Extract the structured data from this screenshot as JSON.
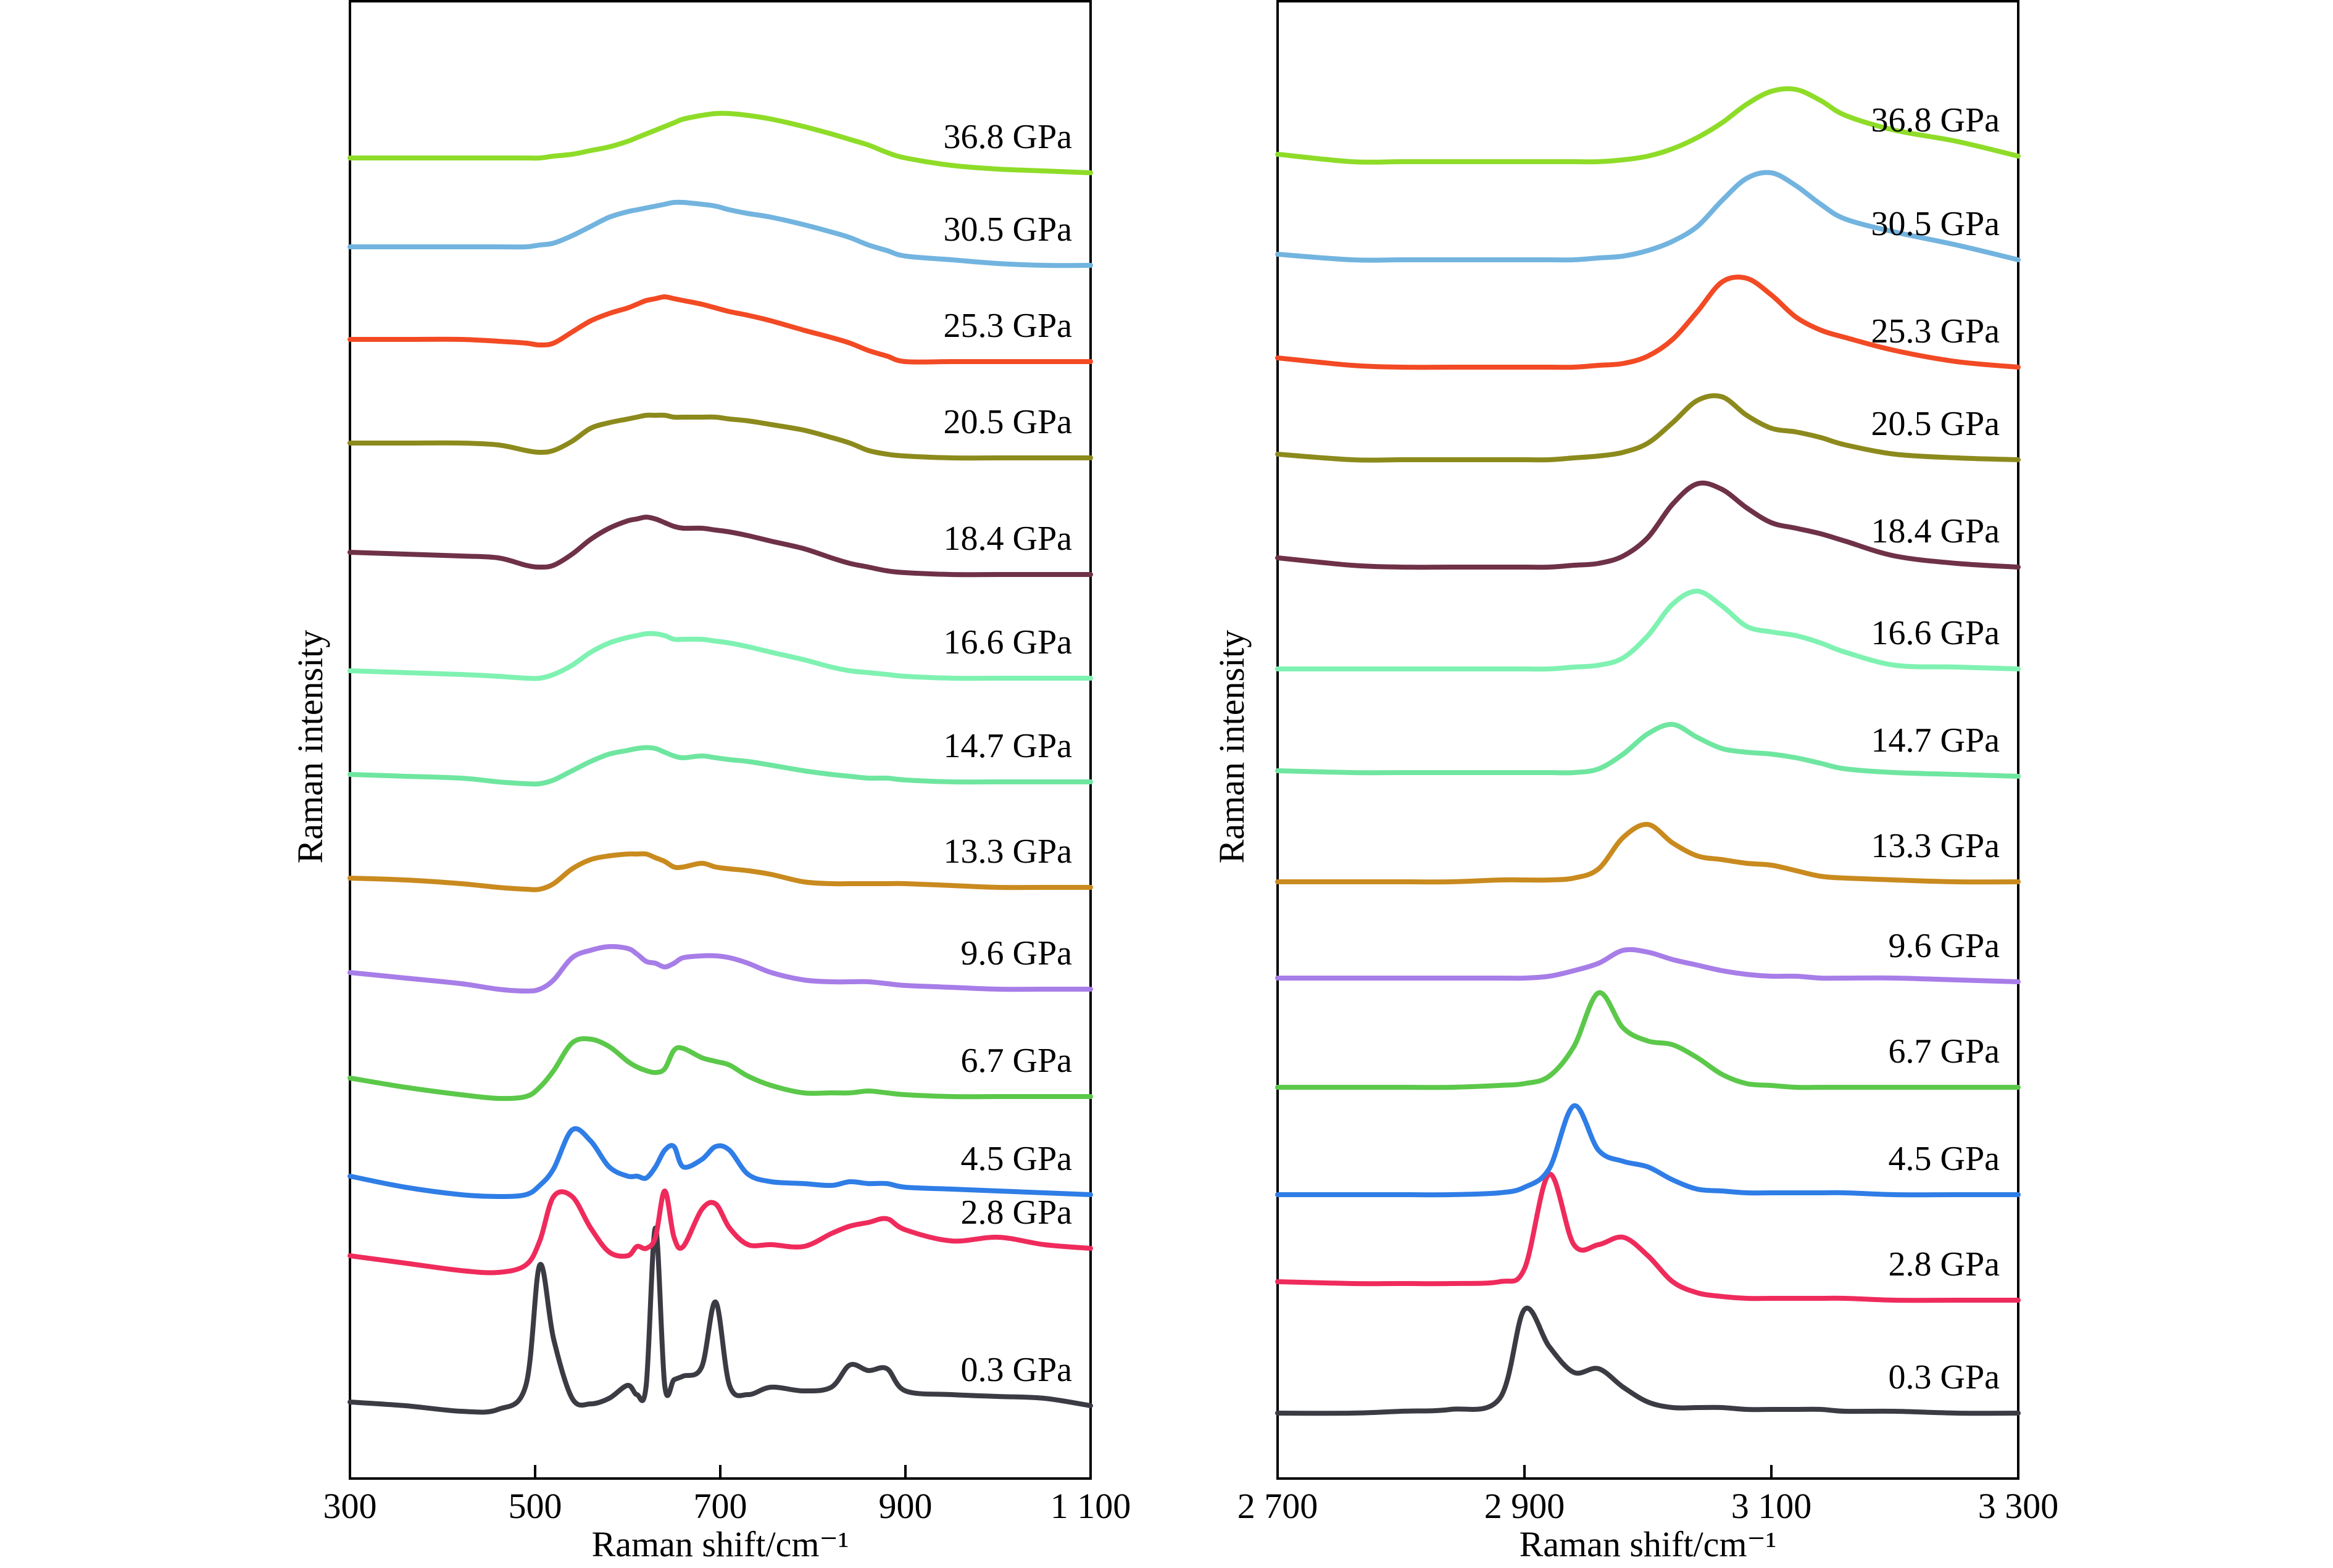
{
  "chart_data": [
    {
      "type": "line",
      "panel": "left",
      "xlabel": "Raman shift/cm⁻¹",
      "ylabel": "Raman intensity",
      "xlim": [
        300,
        1100
      ],
      "xticks": [
        300,
        500,
        700,
        900,
        1100
      ],
      "xtick_labels": [
        "300",
        "500",
        "700",
        "900",
        "1 100"
      ],
      "grid": false,
      "stacked_offset_traces": true,
      "x": [
        300,
        360,
        420,
        460,
        490,
        505,
        520,
        540,
        560,
        580,
        600,
        610,
        620,
        630,
        640,
        650,
        660,
        680,
        695,
        710,
        730,
        755,
        790,
        820,
        840,
        860,
        880,
        900,
        950,
        1000,
        1050,
        1100
      ],
      "series": [
        {
          "name": "0.3 GPa",
          "color": "#3b3b44",
          "baseline": 0.0,
          "values": [
            0.6,
            0.4,
            0.1,
            0.2,
            1.5,
            8.0,
            4.0,
            0.8,
            0.5,
            0.8,
            1.5,
            1.0,
            1.5,
            10.0,
            1.5,
            1.8,
            2.0,
            2.5,
            6.0,
            1.5,
            1.0,
            1.4,
            1.2,
            1.4,
            2.6,
            2.3,
            2.4,
            1.2,
            1.0,
            0.9,
            0.8,
            0.4
          ]
        },
        {
          "name": "2.8 GPa",
          "color": "#ef2b5c",
          "baseline": 7.5,
          "values": [
            1.0,
            0.6,
            0.2,
            0.1,
            0.5,
            1.8,
            4.2,
            4.2,
            2.5,
            1.2,
            1.0,
            1.5,
            1.4,
            2.0,
            4.5,
            2.0,
            1.5,
            3.5,
            3.8,
            2.5,
            1.6,
            1.6,
            1.5,
            2.2,
            2.6,
            2.8,
            3.0,
            2.4,
            1.8,
            2.0,
            1.6,
            1.4
          ]
        },
        {
          "name": "4.5 GPa",
          "color": "#2f7de6",
          "baseline": 11.7,
          "values": [
            1.1,
            0.5,
            0.1,
            0.0,
            0.1,
            0.6,
            1.5,
            3.6,
            3.0,
            1.6,
            1.1,
            1.1,
            1.0,
            1.6,
            2.5,
            2.7,
            1.6,
            2.0,
            2.7,
            2.5,
            1.2,
            0.8,
            0.7,
            0.6,
            0.8,
            0.7,
            0.7,
            0.5,
            0.4,
            0.3,
            0.2,
            0.1
          ]
        },
        {
          "name": "6.7 GPa",
          "color": "#5bc84a",
          "baseline": 17.0,
          "values": [
            1.1,
            0.6,
            0.2,
            0.0,
            0.1,
            0.6,
            1.5,
            3.0,
            3.2,
            2.8,
            2.0,
            1.7,
            1.5,
            1.4,
            1.6,
            2.6,
            2.7,
            2.2,
            2.0,
            1.8,
            1.2,
            0.7,
            0.3,
            0.3,
            0.3,
            0.4,
            0.3,
            0.2,
            0.1,
            0.1,
            0.1,
            0.1
          ]
        },
        {
          "name": "9.6 GPa",
          "color": "#a77de8",
          "baseline": 22.8,
          "values": [
            1.0,
            0.7,
            0.4,
            0.1,
            0.0,
            0.1,
            0.6,
            1.8,
            2.2,
            2.4,
            2.3,
            2.0,
            1.6,
            1.5,
            1.3,
            1.5,
            1.8,
            1.9,
            1.9,
            1.8,
            1.5,
            1.0,
            0.6,
            0.5,
            0.5,
            0.5,
            0.4,
            0.3,
            0.2,
            0.1,
            0.1,
            0.1
          ]
        },
        {
          "name": "13.3 GPa",
          "color": "#c98a1e",
          "baseline": 28.3,
          "values": [
            0.6,
            0.5,
            0.3,
            0.1,
            0.0,
            0.0,
            0.3,
            1.1,
            1.6,
            1.8,
            1.9,
            1.9,
            1.9,
            1.7,
            1.5,
            1.2,
            1.2,
            1.4,
            1.2,
            1.1,
            1.0,
            0.8,
            0.4,
            0.3,
            0.3,
            0.3,
            0.3,
            0.3,
            0.2,
            0.1,
            0.1,
            0.1
          ]
        },
        {
          "name": "14.7 GPa",
          "color": "#6fe6a0",
          "baseline": 34.0,
          "values": [
            0.5,
            0.4,
            0.3,
            0.1,
            0.0,
            0.0,
            0.2,
            0.7,
            1.2,
            1.6,
            1.8,
            1.9,
            1.95,
            1.9,
            1.7,
            1.5,
            1.4,
            1.5,
            1.4,
            1.3,
            1.2,
            1.0,
            0.7,
            0.5,
            0.4,
            0.3,
            0.3,
            0.2,
            0.1,
            0.1,
            0.1,
            0.1
          ]
        },
        {
          "name": "16.6 GPa",
          "color": "#7ff2b2",
          "baseline": 39.7,
          "values": [
            0.4,
            0.3,
            0.2,
            0.1,
            0.0,
            0.0,
            0.2,
            0.7,
            1.4,
            1.9,
            2.2,
            2.3,
            2.4,
            2.4,
            2.3,
            2.1,
            2.1,
            2.1,
            2.0,
            1.9,
            1.7,
            1.4,
            1.0,
            0.6,
            0.4,
            0.3,
            0.2,
            0.1,
            0.0,
            0.0,
            0.0,
            0.0
          ]
        },
        {
          "name": "18.4 GPa",
          "color": "#6e3148",
          "baseline": 45.3,
          "values": [
            1.2,
            1.1,
            1.0,
            0.9,
            0.5,
            0.4,
            0.5,
            1.1,
            1.9,
            2.5,
            2.9,
            3.0,
            3.1,
            3.0,
            2.8,
            2.6,
            2.5,
            2.5,
            2.4,
            2.3,
            2.1,
            1.8,
            1.4,
            0.9,
            0.6,
            0.4,
            0.2,
            0.1,
            0.0,
            0.0,
            0.0,
            0.0
          ]
        },
        {
          "name": "20.5 GPa",
          "color": "#8c8a1c",
          "baseline": 51.6,
          "values": [
            0.8,
            0.8,
            0.8,
            0.7,
            0.4,
            0.3,
            0.4,
            0.9,
            1.6,
            1.9,
            2.1,
            2.2,
            2.3,
            2.3,
            2.3,
            2.2,
            2.2,
            2.2,
            2.2,
            2.1,
            2.0,
            1.8,
            1.5,
            1.1,
            0.8,
            0.4,
            0.2,
            0.1,
            0.0,
            0.0,
            0.0,
            0.0
          ]
        },
        {
          "name": "25.3 GPa",
          "color": "#f24a24",
          "baseline": 56.8,
          "values": [
            1.2,
            1.2,
            1.2,
            1.1,
            1.0,
            0.9,
            1.0,
            1.6,
            2.2,
            2.6,
            2.9,
            3.1,
            3.3,
            3.4,
            3.5,
            3.4,
            3.3,
            3.1,
            2.9,
            2.7,
            2.5,
            2.2,
            1.7,
            1.3,
            1.0,
            0.6,
            0.3,
            0.0,
            0.0,
            0.0,
            0.0,
            0.0
          ]
        },
        {
          "name": "30.5 GPa",
          "color": "#72b4df",
          "baseline": 62.0,
          "values": [
            1.0,
            1.0,
            1.0,
            1.0,
            1.0,
            1.1,
            1.2,
            1.6,
            2.1,
            2.6,
            2.9,
            3.0,
            3.1,
            3.2,
            3.3,
            3.4,
            3.4,
            3.3,
            3.2,
            3.0,
            2.8,
            2.6,
            2.2,
            1.8,
            1.5,
            1.1,
            0.8,
            0.5,
            0.3,
            0.1,
            0.0,
            0.0
          ]
        },
        {
          "name": "36.8 GPa",
          "color": "#8edc28",
          "baseline": 67.0,
          "values": [
            0.8,
            0.8,
            0.8,
            0.8,
            0.8,
            0.8,
            0.9,
            1.0,
            1.2,
            1.4,
            1.7,
            1.9,
            2.1,
            2.3,
            2.5,
            2.7,
            2.9,
            3.1,
            3.2,
            3.2,
            3.1,
            2.9,
            2.5,
            2.1,
            1.8,
            1.5,
            1.1,
            0.8,
            0.4,
            0.2,
            0.1,
            0.0
          ]
        }
      ]
    },
    {
      "type": "line",
      "panel": "right",
      "xlabel": "Raman shift/cm⁻¹",
      "ylabel": "Raman intensity",
      "xlim": [
        2700,
        3300
      ],
      "xticks": [
        2700,
        2900,
        3100,
        3300
      ],
      "xtick_labels": [
        "2 700",
        "2 900",
        "3 100",
        "3 300"
      ],
      "grid": false,
      "stacked_offset_traces": true,
      "x": [
        2700,
        2760,
        2800,
        2840,
        2880,
        2900,
        2920,
        2940,
        2960,
        2980,
        3000,
        3020,
        3040,
        3060,
        3080,
        3100,
        3120,
        3140,
        3160,
        3200,
        3250,
        3300
      ],
      "series": [
        {
          "name": "0.3 GPa",
          "color": "#3b3b44",
          "baseline": 0.0,
          "values": [
            0.0,
            0.0,
            0.1,
            0.2,
            0.8,
            5.6,
            3.6,
            2.2,
            2.4,
            1.4,
            0.6,
            0.3,
            0.3,
            0.3,
            0.2,
            0.2,
            0.2,
            0.2,
            0.1,
            0.1,
            0.0,
            0.0
          ]
        },
        {
          "name": "2.8 GPa",
          "color": "#ef2b5c",
          "baseline": 6.1,
          "values": [
            1.0,
            0.9,
            0.9,
            0.9,
            1.0,
            1.7,
            6.8,
            3.0,
            3.0,
            3.4,
            2.4,
            1.0,
            0.4,
            0.2,
            0.1,
            0.1,
            0.1,
            0.1,
            0.1,
            0.0,
            0.0,
            0.0
          ]
        },
        {
          "name": "4.5 GPa",
          "color": "#2f7de6",
          "baseline": 11.8,
          "values": [
            0.0,
            0.0,
            0.0,
            0.0,
            0.1,
            0.4,
            1.4,
            4.8,
            2.4,
            1.8,
            1.5,
            0.8,
            0.3,
            0.2,
            0.1,
            0.1,
            0.1,
            0.1,
            0.1,
            0.0,
            0.0,
            0.0
          ]
        },
        {
          "name": "6.7 GPa",
          "color": "#5bc84a",
          "baseline": 17.6,
          "values": [
            0.0,
            0.0,
            0.0,
            0.0,
            0.1,
            0.2,
            0.6,
            2.2,
            5.1,
            3.2,
            2.5,
            2.3,
            1.6,
            0.7,
            0.2,
            0.1,
            0.0,
            0.0,
            0.0,
            0.0,
            0.0,
            0.0
          ]
        },
        {
          "name": "9.6 GPa",
          "color": "#a77de8",
          "baseline": 23.3,
          "values": [
            0.2,
            0.2,
            0.2,
            0.2,
            0.2,
            0.2,
            0.3,
            0.6,
            1.0,
            1.7,
            1.6,
            1.2,
            0.9,
            0.6,
            0.4,
            0.3,
            0.3,
            0.2,
            0.2,
            0.2,
            0.1,
            0.0
          ]
        },
        {
          "name": "13.3 GPa",
          "color": "#c98a1e",
          "baseline": 28.7,
          "values": [
            0.0,
            0.0,
            0.0,
            0.0,
            0.1,
            0.1,
            0.1,
            0.2,
            0.7,
            2.4,
            3.1,
            2.1,
            1.4,
            1.2,
            1.0,
            0.9,
            0.6,
            0.3,
            0.2,
            0.1,
            0.0,
            0.0
          ]
        },
        {
          "name": "14.7 GPa",
          "color": "#6fe6a0",
          "baseline": 34.4,
          "values": [
            0.3,
            0.2,
            0.2,
            0.2,
            0.2,
            0.2,
            0.2,
            0.2,
            0.4,
            1.2,
            2.3,
            2.8,
            2.1,
            1.5,
            1.3,
            1.2,
            1.0,
            0.7,
            0.4,
            0.2,
            0.1,
            0.0
          ]
        },
        {
          "name": "16.6 GPa",
          "color": "#7ff2b2",
          "baseline": 40.2,
          "values": [
            0.0,
            0.0,
            0.0,
            0.0,
            0.0,
            0.0,
            0.0,
            0.1,
            0.2,
            0.6,
            1.8,
            3.5,
            4.2,
            3.4,
            2.3,
            2.0,
            1.8,
            1.4,
            0.9,
            0.2,
            0.1,
            0.0
          ]
        },
        {
          "name": "18.4 GPa",
          "color": "#6e3148",
          "baseline": 45.7,
          "values": [
            0.5,
            0.1,
            0.0,
            0.0,
            0.0,
            0.0,
            0.0,
            0.1,
            0.2,
            0.6,
            1.6,
            3.4,
            4.5,
            4.2,
            3.2,
            2.4,
            2.1,
            1.8,
            1.4,
            0.6,
            0.2,
            0.0
          ]
        },
        {
          "name": "20.5 GPa",
          "color": "#8c8a1c",
          "baseline": 51.5,
          "values": [
            0.3,
            0.0,
            0.0,
            0.0,
            0.0,
            0.0,
            0.0,
            0.1,
            0.2,
            0.4,
            0.9,
            2.0,
            3.2,
            3.4,
            2.4,
            1.7,
            1.5,
            1.2,
            0.8,
            0.3,
            0.1,
            0.0
          ]
        },
        {
          "name": "25.3 GPa",
          "color": "#f24a24",
          "baseline": 56.5,
          "values": [
            0.5,
            0.1,
            0.0,
            0.0,
            0.0,
            0.0,
            0.0,
            0.0,
            0.1,
            0.2,
            0.6,
            1.5,
            3.0,
            4.6,
            4.8,
            3.9,
            2.7,
            2.0,
            1.6,
            0.9,
            0.3,
            0.0
          ]
        },
        {
          "name": "30.5 GPa",
          "color": "#72b4df",
          "baseline": 61.9,
          "values": [
            0.7,
            0.4,
            0.4,
            0.4,
            0.4,
            0.4,
            0.4,
            0.4,
            0.5,
            0.6,
            0.9,
            1.4,
            2.2,
            3.6,
            4.8,
            5.1,
            4.4,
            3.4,
            2.6,
            1.9,
            1.2,
            0.4
          ]
        },
        {
          "name": "36.8 GPa",
          "color": "#8edc28",
          "baseline": 67.3,
          "values": [
            0.7,
            0.3,
            0.3,
            0.3,
            0.3,
            0.3,
            0.3,
            0.3,
            0.3,
            0.4,
            0.6,
            1.0,
            1.6,
            2.4,
            3.4,
            4.1,
            4.2,
            3.6,
            2.8,
            2.0,
            1.4,
            0.6
          ]
        }
      ]
    }
  ]
}
